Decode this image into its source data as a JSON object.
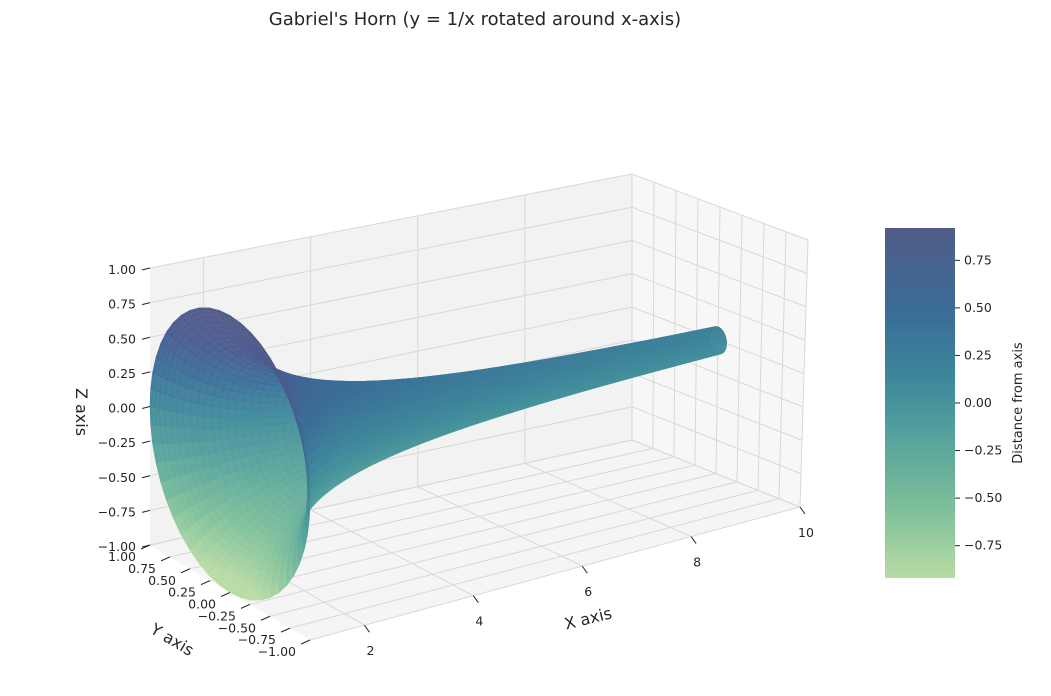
{
  "chart_data": {
    "type": "surface3d",
    "title": "Gabriel's Horn (y = 1/x rotated around x-axis)",
    "function": "y = 1/x",
    "x_range": [
      1,
      10
    ],
    "xlabel": "X axis",
    "ylabel": "Y axis",
    "zlabel": "Z axis",
    "x_ticks": [
      "2",
      "4",
      "6",
      "8",
      "10"
    ],
    "y_ticks": [
      "1.00",
      "0.75",
      "0.50",
      "0.25",
      "0.00",
      "−0.25",
      "−0.50",
      "−0.75",
      "−1.00"
    ],
    "z_ticks": [
      "1.00",
      "0.75",
      "0.50",
      "0.25",
      "0.00",
      "−0.25",
      "−0.50",
      "−0.75",
      "−1.00"
    ],
    "xlim": [
      1,
      10
    ],
    "ylim": [
      -1,
      1
    ],
    "zlim": [
      -1,
      1
    ],
    "colorscale": {
      "label": "Distance from axis",
      "range": [
        -0.92,
        0.92
      ],
      "ticks": [
        "0.75",
        "0.50",
        "0.25",
        "0.00",
        "−0.25",
        "−0.50",
        "−0.75"
      ],
      "tick_values": [
        0.75,
        0.5,
        0.25,
        0,
        -0.25,
        -0.5,
        -0.75
      ],
      "colors": [
        "#b7dba3",
        "#7dbf9a",
        "#57a39c",
        "#3f8a9b",
        "#3a6e98",
        "#4a5a91",
        "#515b88"
      ]
    },
    "grid": true
  }
}
